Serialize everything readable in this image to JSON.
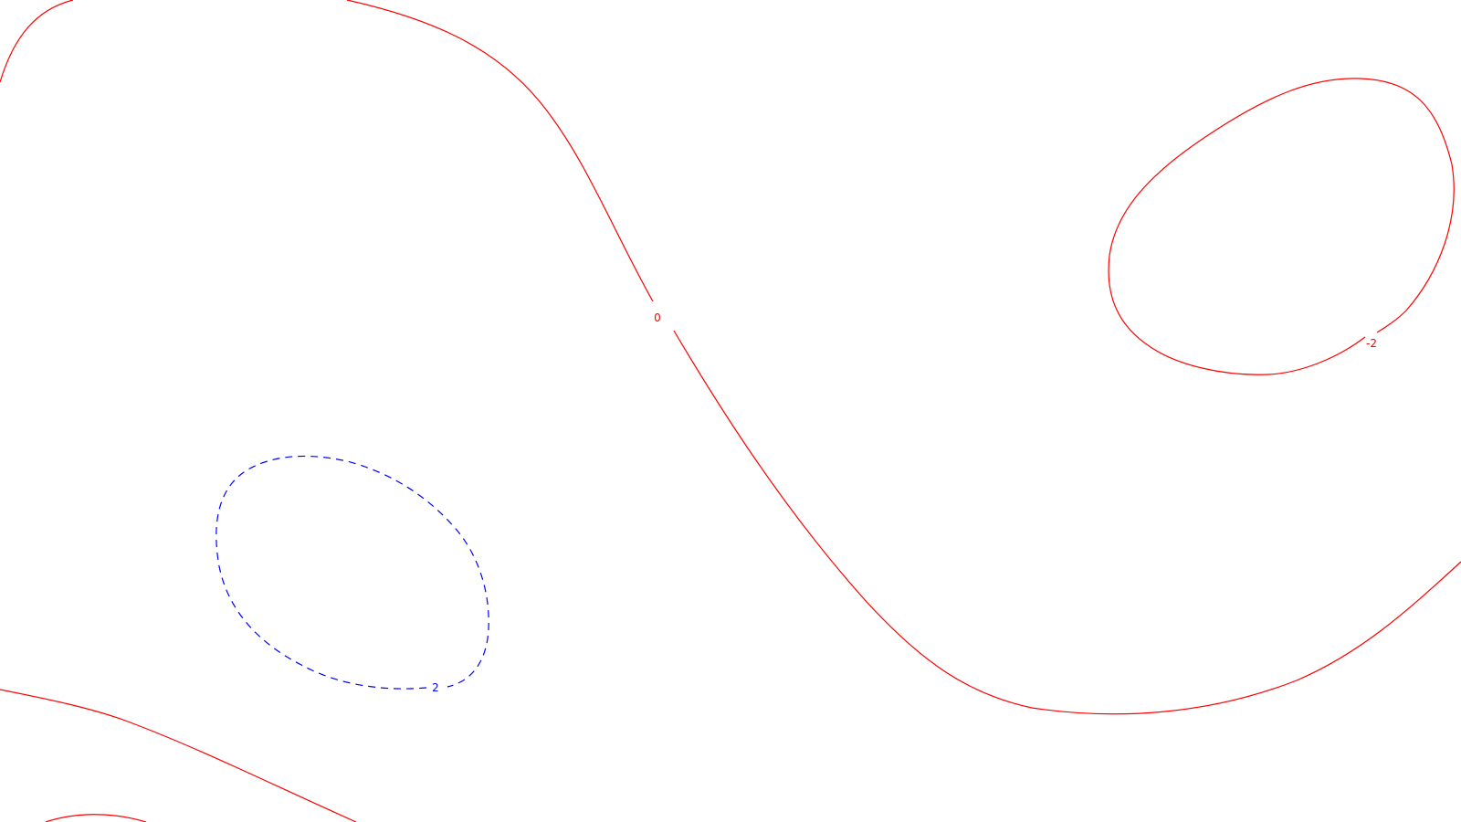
{
  "chart_data": {
    "type": "contour",
    "title": "",
    "xlabel": "",
    "ylabel": "",
    "grid": false,
    "legend": "none",
    "contour_labels": [
      {
        "value": "0",
        "color": "#ff0000",
        "style": "solid"
      },
      {
        "value": "-2",
        "color": "#ff0000",
        "style": "solid"
      },
      {
        "value": "2",
        "color": "#0000ff",
        "style": "dashed"
      }
    ],
    "colors": {
      "solid_level": "#ff0000",
      "dashed_level": "#0000ff",
      "background": "#ffffff"
    }
  }
}
